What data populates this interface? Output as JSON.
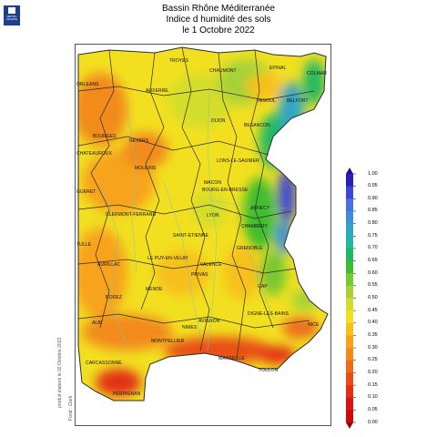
{
  "logo": {
    "text": "MÉTÉO FRANCE"
  },
  "title": {
    "line1": "Bassin Rhône Méditerranée",
    "line2": "Indice d humidité des sols",
    "line3": "le 1 Octobre 2022"
  },
  "credit": {
    "produced": "produit élaboré le 02 Octobre 2022",
    "source": "Fond : Clark"
  },
  "legend": {
    "ticks": [
      "1.00",
      "0.95",
      "0.90",
      "0.85",
      "0.80",
      "0.75",
      "0.70",
      "0.65",
      "0.60",
      "0.55",
      "0.50",
      "0.45",
      "0.40",
      "0.35",
      "0.30",
      "0.25",
      "0.20",
      "0.15",
      "0.10",
      "0.05",
      "0.00"
    ],
    "colors": [
      "#2a1fb5",
      "#3d46d6",
      "#4a6fe0",
      "#3e8fd9",
      "#2fa6c6",
      "#1fb8a6",
      "#21b865",
      "#3fbd2f",
      "#78c832",
      "#a6d237",
      "#d4dd2a",
      "#f2e020",
      "#f7c01e",
      "#f7a31c",
      "#f28a1b",
      "#ed6d1a",
      "#e84f18",
      "#e23116",
      "#d81414",
      "#cc0a0a"
    ]
  },
  "cities": [
    {
      "name": "TROYES"
    },
    {
      "name": "EPINAL"
    },
    {
      "name": "COLMAR"
    },
    {
      "name": "CHAUMONT"
    },
    {
      "name": "ORLEANS"
    },
    {
      "name": "AUXERRE"
    },
    {
      "name": "VESOUL"
    },
    {
      "name": "BELFORT"
    },
    {
      "name": "DIJON"
    },
    {
      "name": "BESANCON"
    },
    {
      "name": "BOURGES"
    },
    {
      "name": "NEVERS"
    },
    {
      "name": "CHATEAUROUX"
    },
    {
      "name": "MOULINS"
    },
    {
      "name": "LONS-LE-SAUNIER"
    },
    {
      "name": "GUERET"
    },
    {
      "name": "MACON"
    },
    {
      "name": "BOURG-EN-BRESSE"
    },
    {
      "name": "ANNECY"
    },
    {
      "name": "CLERMONT-FERRAND"
    },
    {
      "name": "LYON"
    },
    {
      "name": "CHAMBERY"
    },
    {
      "name": "SAINT-ETIENNE"
    },
    {
      "name": "GRENOBLE"
    },
    {
      "name": "TULLE"
    },
    {
      "name": "AURILLAC"
    },
    {
      "name": "LE PUY-EN-VELAY"
    },
    {
      "name": "VALENCE"
    },
    {
      "name": "PRIVAS"
    },
    {
      "name": "GAP"
    },
    {
      "name": "MENDE"
    },
    {
      "name": "RODEZ"
    },
    {
      "name": "DIGNE-LES-BAINS"
    },
    {
      "name": "ALBI"
    },
    {
      "name": "AVIGNON"
    },
    {
      "name": "NIMES"
    },
    {
      "name": "MONTPELLIER"
    },
    {
      "name": "NICE"
    },
    {
      "name": "CARCASSONNE"
    },
    {
      "name": "MARSEILLE"
    },
    {
      "name": "TOULON"
    },
    {
      "name": "PERPIGNAN"
    }
  ]
}
